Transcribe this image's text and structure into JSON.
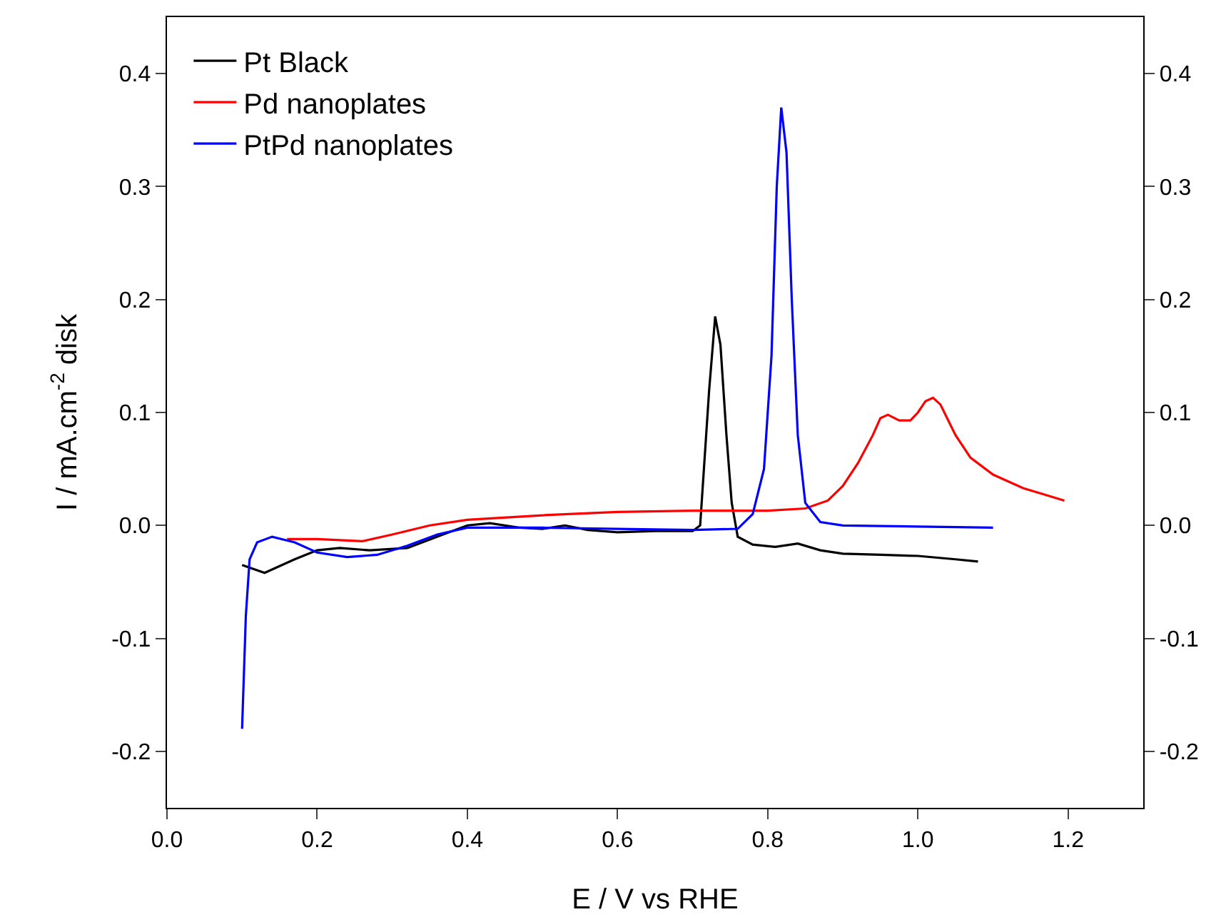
{
  "chart_data": {
    "type": "line",
    "xlabel": "E / V vs RHE",
    "ylabel": "I / mA.cm$^{-2}$ disk",
    "xlim": [
      0,
      1.3
    ],
    "xticks": [
      {
        "value": 0,
        "label": "0.0"
      },
      0.2,
      0.4,
      0.6,
      0.8,
      {
        "value": 1,
        "label": "1.0"
      },
      1.2
    ],
    "ylim": [
      -0.25,
      0.45
    ],
    "yticks": [
      -0.2,
      -0.1,
      {
        "value": 0,
        "label": "0.0"
      },
      0.1,
      0.2,
      0.3,
      0.4
    ],
    "y2lim": [
      -0.25,
      0.45
    ],
    "y2ticks": [
      -0.2,
      -0.1,
      {
        "value": 0,
        "label": "0.0"
      },
      0.1,
      0.2,
      0.3,
      0.4
    ],
    "grid": false,
    "legend": "top left",
    "marker": "none",
    "line_style": "solid",
    "series": [
      {
        "name": "Pt Black",
        "color": "#000000",
        "x": [
          0.1,
          0.13,
          0.17,
          0.2,
          0.23,
          0.27,
          0.32,
          0.36,
          0.4,
          0.43,
          0.47,
          0.5,
          0.53,
          0.56,
          0.6,
          0.65,
          0.7,
          0.71,
          0.715,
          0.722,
          0.73,
          0.737,
          0.745,
          0.752,
          0.76,
          0.78,
          0.81,
          0.84,
          0.87,
          0.9,
          0.95,
          1.0,
          1.05,
          1.08
        ],
        "values": [
          -0.035,
          -0.042,
          -0.03,
          -0.022,
          -0.02,
          -0.022,
          -0.02,
          -0.01,
          0,
          0.002,
          -0.002,
          -0.003,
          0,
          -0.004,
          -0.006,
          -0.005,
          -0.005,
          0.0,
          0.05,
          0.12,
          0.185,
          0.16,
          0.08,
          0.02,
          -0.01,
          -0.017,
          -0.019,
          -0.016,
          -0.022,
          -0.025,
          -0.026,
          -0.027,
          -0.03,
          -0.032
        ]
      },
      {
        "name": "Pd nanoplates",
        "color": "#ff0000",
        "x": [
          0.16,
          0.2,
          0.26,
          0.3,
          0.35,
          0.4,
          0.5,
          0.6,
          0.7,
          0.8,
          0.85,
          0.88,
          0.9,
          0.92,
          0.94,
          0.95,
          0.96,
          0.975,
          0.99,
          1.0,
          1.01,
          1.02,
          1.03,
          1.05,
          1.07,
          1.1,
          1.14,
          1.17,
          1.195
        ],
        "values": [
          -0.012,
          -0.012,
          -0.014,
          -0.008,
          0.0,
          0.005,
          0.009,
          0.012,
          0.013,
          0.013,
          0.015,
          0.022,
          0.035,
          0.055,
          0.08,
          0.095,
          0.098,
          0.093,
          0.093,
          0.1,
          0.11,
          0.113,
          0.107,
          0.08,
          0.06,
          0.045,
          0.033,
          0.027,
          0.022
        ]
      },
      {
        "name": "PtPd nanoplates",
        "color": "#0000ff",
        "x": [
          0.1,
          0.105,
          0.11,
          0.12,
          0.14,
          0.17,
          0.2,
          0.24,
          0.28,
          0.32,
          0.36,
          0.4,
          0.5,
          0.6,
          0.7,
          0.76,
          0.78,
          0.795,
          0.805,
          0.812,
          0.818,
          0.825,
          0.832,
          0.84,
          0.85,
          0.87,
          0.9,
          1.0,
          1.1
        ],
        "values": [
          -0.18,
          -0.08,
          -0.03,
          -0.015,
          -0.01,
          -0.015,
          -0.024,
          -0.028,
          -0.026,
          -0.018,
          -0.008,
          -0.002,
          -0.002,
          -0.003,
          -0.004,
          -0.003,
          0.01,
          0.05,
          0.15,
          0.3,
          0.37,
          0.33,
          0.2,
          0.08,
          0.02,
          0.003,
          0.0,
          -0.001,
          -0.002
        ]
      }
    ]
  }
}
